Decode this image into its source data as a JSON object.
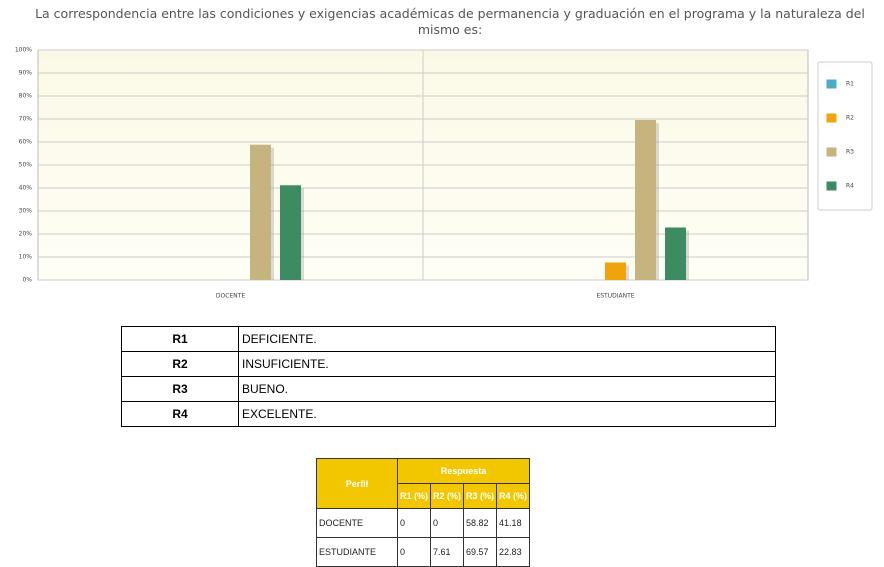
{
  "chart_data": {
    "type": "bar",
    "title": "La correspondencia entre las condiciones y exigencias académicas de permanencia y graduación en el programa y la naturaleza del mismo es:",
    "categories": [
      "DOCENTE",
      "ESTUDIANTE"
    ],
    "series": [
      {
        "name": "R1",
        "color": "#4bacc6",
        "values": [
          0,
          0
        ]
      },
      {
        "name": "R2",
        "color": "#f0a30a",
        "values": [
          0,
          7.61
        ]
      },
      {
        "name": "R3",
        "color": "#c6b47e",
        "values": [
          58.82,
          69.57
        ]
      },
      {
        "name": "R4",
        "color": "#3d8b63",
        "values": [
          41.18,
          22.83
        ]
      }
    ],
    "ylim": [
      0,
      100
    ],
    "yticks": [
      {
        "value": 0,
        "label": "0%"
      },
      {
        "value": 10,
        "label": "10%"
      },
      {
        "value": 20,
        "label": "20%"
      },
      {
        "value": 30,
        "label": "30%"
      },
      {
        "value": 40,
        "label": "40%"
      },
      {
        "value": 50,
        "label": "50%"
      },
      {
        "value": 60,
        "label": "60%"
      },
      {
        "value": 70,
        "label": "70%"
      },
      {
        "value": 80,
        "label": "80%"
      },
      {
        "value": 90,
        "label": "90%"
      },
      {
        "value": 100,
        "label": "100%"
      }
    ],
    "grid": true,
    "legend": "right"
  },
  "definitions": {
    "rows": [
      [
        "R1",
        "DEFICIENTE."
      ],
      [
        "R2",
        "INSUFICIENTE."
      ],
      [
        "R3",
        "BUENO."
      ],
      [
        "R4",
        "EXCELENTE."
      ]
    ]
  },
  "results": {
    "header": [
      "Perfil",
      "Respuesta"
    ],
    "subheader": [
      "R1 (%)",
      "R2 (%)",
      "R3 (%)",
      "R4 (%)"
    ],
    "rows": [
      [
        "DOCENTE",
        "0",
        "0",
        "58.82",
        "41.18"
      ],
      [
        "ESTUDIANTE",
        "0",
        "7.61",
        "69.57",
        "22.83"
      ]
    ]
  }
}
